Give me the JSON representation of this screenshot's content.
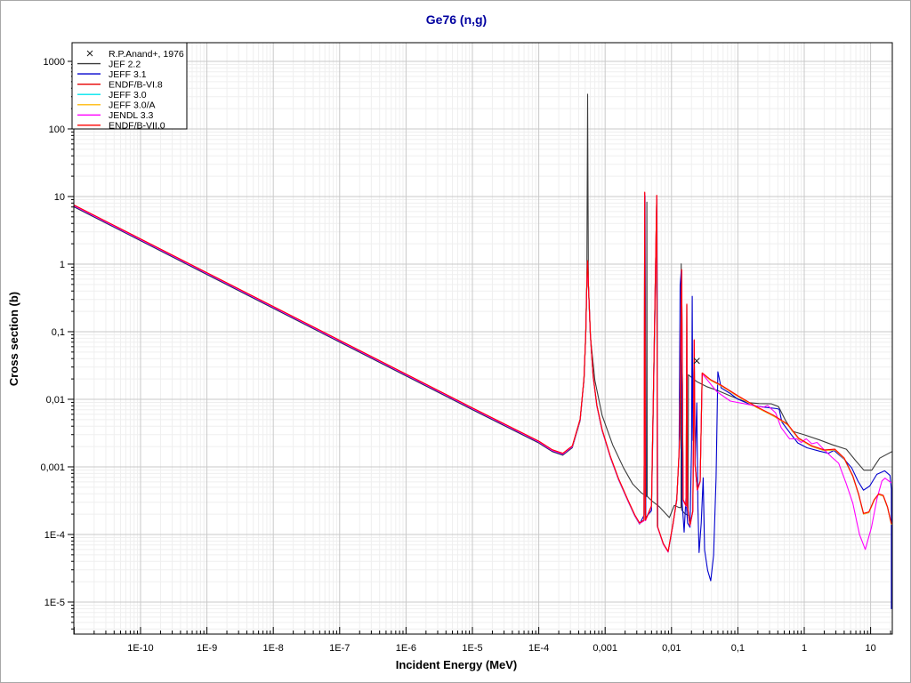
{
  "window": {
    "title": "Ge76 (n,g)"
  },
  "accent_color": "#0000a0",
  "chart_data": {
    "type": "line",
    "title": "Ge76 (n,g)",
    "xlabel": "Incident Energy (MeV)",
    "ylabel": "Cross section (b)",
    "x_scale": "log",
    "y_scale": "log",
    "xlim": [
      1e-11,
      21.2
    ],
    "ylim": [
      3.4e-06,
      1890
    ],
    "grid": true,
    "legend_position": "top-left",
    "x_ticks": [
      {
        "value": 1e-10,
        "label": "1E-10"
      },
      {
        "value": 1e-09,
        "label": "1E-9"
      },
      {
        "value": 1e-08,
        "label": "1E-8"
      },
      {
        "value": 1e-07,
        "label": "1E-7"
      },
      {
        "value": 1e-06,
        "label": "1E-6"
      },
      {
        "value": 1e-05,
        "label": "1E-5"
      },
      {
        "value": 0.0001,
        "label": "1E-4"
      },
      {
        "value": 0.001,
        "label": "0,001"
      },
      {
        "value": 0.01,
        "label": "0,01"
      },
      {
        "value": 0.1,
        "label": "0,1"
      },
      {
        "value": 1,
        "label": "1"
      },
      {
        "value": 10,
        "label": "10"
      }
    ],
    "y_ticks": [
      {
        "value": 1000,
        "label": "1000"
      },
      {
        "value": 100,
        "label": "100"
      },
      {
        "value": 10,
        "label": "10"
      },
      {
        "value": 1,
        "label": "1"
      },
      {
        "value": 0.1,
        "label": "0,1"
      },
      {
        "value": 0.01,
        "label": "0,01"
      },
      {
        "value": 0.001,
        "label": "0,001"
      },
      {
        "value": 0.0001,
        "label": "1E-4"
      },
      {
        "value": 1e-05,
        "label": "1E-5"
      }
    ],
    "paths": {
      "common": [
        [
          1e-11,
          7.3
        ],
        [
          1e-09,
          0.73
        ],
        [
          1e-07,
          0.073
        ],
        [
          1e-05,
          0.0073
        ],
        [
          0.0001,
          0.00235
        ],
        [
          0.00016,
          0.00175
        ],
        [
          0.00023,
          0.00155
        ],
        [
          0.00032,
          0.002
        ],
        [
          0.00042,
          0.005
        ],
        [
          0.00048,
          0.02
        ],
        [
          0.00051,
          0.09
        ],
        [
          0.00053,
          0.5
        ],
        [
          0.000545,
          1.1
        ],
        [
          0.00056,
          0.5
        ],
        [
          0.0006,
          0.09
        ],
        [
          0.00066,
          0.022
        ],
        [
          0.00075,
          0.008
        ],
        [
          0.0009,
          0.0035
        ],
        [
          0.0012,
          0.0014
        ],
        [
          0.0016,
          0.00065
        ],
        [
          0.0022,
          0.00032
        ],
        [
          0.0028,
          0.00019
        ],
        [
          0.0033,
          0.000145
        ]
      ],
      "red_resolved": [
        [
          0.00385,
          0.00016
        ],
        [
          0.00395,
          11.3
        ],
        [
          0.00405,
          0.00016
        ],
        [
          0.005,
          0.00026
        ],
        [
          0.006,
          10.2
        ],
        [
          0.00615,
          0.00013
        ],
        [
          0.0075,
          7.2e-05
        ],
        [
          0.0089,
          5.5e-05
        ],
        [
          0.0105,
          0.00014
        ],
        [
          0.012,
          0.00032
        ],
        [
          0.0133,
          0.0025
        ],
        [
          0.0142,
          0.81
        ],
        [
          0.015,
          0.00032
        ],
        [
          0.0166,
          0.00026
        ],
        [
          0.017,
          0.25
        ],
        [
          0.0174,
          0.00026
        ],
        [
          0.019,
          0.000135
        ],
        [
          0.021,
          0.00022
        ],
        [
          0.022,
          0.074
        ],
        [
          0.0226,
          0.0011
        ],
        [
          0.0245,
          0.00045
        ],
        [
          0.027,
          0.0006
        ],
        [
          0.029,
          0.024
        ]
      ],
      "red_smooth": [
        [
          0.039,
          0.019
        ],
        [
          0.056,
          0.0158
        ],
        [
          0.1,
          0.011
        ],
        [
          0.19,
          0.0076
        ],
        [
          0.35,
          0.0056
        ],
        [
          0.56,
          0.0042
        ],
        [
          0.82,
          0.0026
        ],
        [
          1.3,
          0.002
        ],
        [
          2.0,
          0.00174
        ],
        [
          2.9,
          0.00178
        ],
        [
          4.0,
          0.00132
        ],
        [
          5.4,
          0.00072
        ],
        [
          6.6,
          0.00039
        ],
        [
          7.8,
          0.0002
        ],
        [
          9.4,
          0.00021
        ],
        [
          11.3,
          0.00032
        ],
        [
          13.2,
          0.00039
        ],
        [
          15.5,
          0.00037
        ],
        [
          18,
          0.00025
        ],
        [
          20.6,
          0.00014
        ]
      ],
      "jeff31_rest": [
        [
          0.0039,
          0.0002
        ],
        [
          0.004,
          10.5
        ],
        [
          0.0041,
          0.00018
        ],
        [
          0.005,
          0.00023
        ],
        [
          0.00605,
          9.5
        ],
        [
          0.0062,
          0.00013
        ],
        [
          0.0075,
          7.5e-05
        ],
        [
          0.0089,
          5.6e-05
        ],
        [
          0.0105,
          0.00014
        ],
        [
          0.012,
          0.00035
        ],
        [
          0.013,
          0.0015
        ],
        [
          0.0135,
          0.5
        ],
        [
          0.014,
          0.8
        ],
        [
          0.0145,
          0.0003
        ],
        [
          0.0155,
          0.00011
        ],
        [
          0.0165,
          0.00035
        ],
        [
          0.0175,
          0.00015
        ],
        [
          0.019,
          0.00013
        ],
        [
          0.02,
          0.002
        ],
        [
          0.0205,
          0.34
        ],
        [
          0.021,
          0.0025
        ],
        [
          0.022,
          0.065
        ],
        [
          0.0227,
          0.0012
        ],
        [
          0.024,
          0.009
        ],
        [
          0.025,
          0.00025
        ],
        [
          0.026,
          5.5e-05
        ],
        [
          0.028,
          0.00015
        ],
        [
          0.03,
          0.0007
        ],
        [
          0.0315,
          6e-05
        ],
        [
          0.035,
          3e-05
        ],
        [
          0.039,
          2.1e-05
        ],
        [
          0.043,
          5e-05
        ],
        [
          0.047,
          0.0007
        ],
        [
          0.05,
          0.026
        ],
        [
          0.056,
          0.015
        ],
        [
          0.077,
          0.0124
        ],
        [
          0.1,
          0.0102
        ],
        [
          0.17,
          0.0082
        ],
        [
          0.27,
          0.0077
        ],
        [
          0.39,
          0.0074
        ],
        [
          0.42,
          0.0072
        ],
        [
          0.46,
          0.0047
        ],
        [
          0.63,
          0.0031
        ],
        [
          0.8,
          0.0023
        ],
        [
          1.1,
          0.00195
        ],
        [
          1.7,
          0.00174
        ],
        [
          2.3,
          0.00162
        ],
        [
          2.8,
          0.00178
        ],
        [
          4.0,
          0.00132
        ],
        [
          5.2,
          0.00098
        ],
        [
          6.5,
          0.00062
        ],
        [
          7.8,
          0.00046
        ],
        [
          9.7,
          0.00053
        ],
        [
          12.4,
          0.00079
        ],
        [
          16.3,
          0.00089
        ],
        [
          19.6,
          0.00076
        ],
        [
          20.6,
          0.00048
        ],
        [
          20.6,
          8e-06
        ]
      ],
      "jendl_tail": [
        [
          0.048,
          0.013
        ],
        [
          0.077,
          0.0094
        ],
        [
          0.15,
          0.0083
        ],
        [
          0.24,
          0.0076
        ],
        [
          0.28,
          0.0081
        ],
        [
          0.37,
          0.0063
        ],
        [
          0.45,
          0.0038
        ],
        [
          0.6,
          0.0026
        ],
        [
          0.77,
          0.0026
        ],
        [
          0.9,
          0.0023
        ],
        [
          1.07,
          0.0026
        ],
        [
          1.3,
          0.0022
        ],
        [
          1.56,
          0.0023
        ],
        [
          2.0,
          0.00178
        ],
        [
          2.6,
          0.00139
        ],
        [
          3.3,
          0.00113
        ],
        [
          4.3,
          0.00056
        ],
        [
          5.4,
          0.00029
        ],
        [
          6.8,
          0.0001
        ],
        [
          8.3,
          6e-05
        ],
        [
          10.3,
          0.000128
        ],
        [
          12.5,
          0.00034
        ],
        [
          14.8,
          0.00062
        ],
        [
          16.5,
          0.00068
        ],
        [
          20.6,
          0.00058
        ]
      ],
      "jef22_full": [
        [
          1e-11,
          7.3
        ],
        [
          1e-09,
          0.73
        ],
        [
          1e-07,
          0.073
        ],
        [
          1e-05,
          0.0073
        ],
        [
          0.0001,
          0.00235
        ],
        [
          0.00016,
          0.00175
        ],
        [
          0.00023,
          0.00155
        ],
        [
          0.00032,
          0.002
        ],
        [
          0.00042,
          0.005
        ],
        [
          0.00048,
          0.02
        ],
        [
          0.00051,
          0.09
        ],
        [
          0.00053,
          0.5
        ],
        [
          0.000545,
          340
        ],
        [
          0.00056,
          0.5
        ],
        [
          0.0006,
          0.09
        ],
        [
          0.0007,
          0.02
        ],
        [
          0.0009,
          0.006
        ],
        [
          0.0013,
          0.0022
        ],
        [
          0.0019,
          0.001
        ],
        [
          0.0026,
          0.00058
        ],
        [
          0.0035,
          0.00043
        ],
        [
          0.0042,
          0.00038
        ],
        [
          0.00425,
          8.6
        ],
        [
          0.0043,
          0.00038
        ],
        [
          0.005,
          0.00033
        ],
        [
          0.0065,
          0.00027
        ],
        [
          0.0093,
          0.000185
        ],
        [
          0.011,
          0.00028
        ],
        [
          0.013,
          0.00026
        ],
        [
          0.0139,
          0.00026
        ],
        [
          0.014,
          1.05
        ],
        [
          0.0142,
          0.00024
        ],
        [
          0.016,
          0.00021
        ],
        [
          0.0178,
          0.0002
        ],
        [
          0.018,
          0.024
        ],
        [
          0.024,
          0.019
        ],
        [
          0.034,
          0.016
        ],
        [
          0.05,
          0.014
        ],
        [
          0.077,
          0.0117
        ],
        [
          0.14,
          0.0093
        ],
        [
          0.21,
          0.009
        ],
        [
          0.32,
          0.0089
        ],
        [
          0.41,
          0.0081
        ],
        [
          0.52,
          0.0051
        ],
        [
          0.66,
          0.0035
        ],
        [
          1.0,
          0.0031
        ],
        [
          1.7,
          0.0026
        ],
        [
          2.7,
          0.0022
        ],
        [
          4.3,
          0.0019
        ],
        [
          5.9,
          0.0013
        ],
        [
          7.9,
          0.00093
        ],
        [
          10.4,
          0.00093
        ],
        [
          13.7,
          0.0014
        ],
        [
          21,
          0.00175
        ]
      ],
      "anand_points": [
        [
          0.024,
          0.037
        ]
      ]
    },
    "series": [
      {
        "name": "JEF 2.2",
        "type": "line",
        "color": "#3c3c3c",
        "parts": [
          "jef22_full"
        ]
      },
      {
        "name": "JEFF 3.1",
        "type": "line",
        "color": "#0000cd",
        "parts": [
          "common",
          "jeff31_rest"
        ]
      },
      {
        "name": "ENDF/B-VI.8",
        "type": "line",
        "color": "#e80000",
        "parts": [
          "common",
          "red_resolved",
          "red_smooth"
        ]
      },
      {
        "name": "JEFF 3.0",
        "type": "line",
        "color": "#00e5ee",
        "parts": [
          "common",
          "red_resolved",
          "red_smooth"
        ]
      },
      {
        "name": "JEFF 3.0/A",
        "type": "line",
        "color": "#ffc125",
        "parts": [
          "common",
          "red_resolved",
          "red_smooth"
        ]
      },
      {
        "name": "JENDL 3.3",
        "type": "line",
        "color": "#ff00ff",
        "parts": [
          "common",
          "red_resolved",
          "jendl_tail"
        ]
      },
      {
        "name": "ENDF/B-VII.0",
        "type": "line",
        "color": "#ff0000",
        "parts": [
          "common",
          "red_resolved",
          "red_smooth"
        ]
      },
      {
        "name": "R.P.Anand+, 1976",
        "type": "scatter",
        "marker": "x",
        "color": "#1a1a1a",
        "parts": [
          "anand_points"
        ]
      }
    ]
  },
  "legend": {
    "items": [
      {
        "label": "R.P.Anand+, 1976",
        "marker": "x",
        "color": "#1a1a1a"
      },
      {
        "label": "JEF 2.2",
        "marker": "line",
        "color": "#3c3c3c"
      },
      {
        "label": "JEFF 3.1",
        "marker": "line",
        "color": "#0000cd"
      },
      {
        "label": "ENDF/B-VI.8",
        "marker": "line",
        "color": "#e80000"
      },
      {
        "label": "JEFF 3.0",
        "marker": "line",
        "color": "#00e5ee"
      },
      {
        "label": "JEFF 3.0/A",
        "marker": "line",
        "color": "#ffc125"
      },
      {
        "label": "JENDL 3.3",
        "marker": "line",
        "color": "#ff00ff"
      },
      {
        "label": "ENDF/B-VII.0",
        "marker": "line",
        "color": "#ff0000"
      }
    ]
  }
}
